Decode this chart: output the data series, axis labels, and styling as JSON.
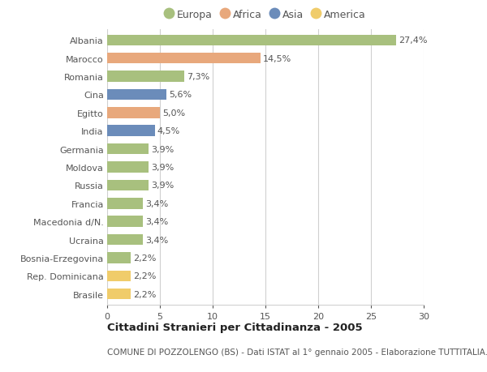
{
  "countries": [
    "Albania",
    "Marocco",
    "Romania",
    "Cina",
    "Egitto",
    "India",
    "Germania",
    "Moldova",
    "Russia",
    "Francia",
    "Macedonia d/N.",
    "Ucraina",
    "Bosnia-Erzegovina",
    "Rep. Dominicana",
    "Brasile"
  ],
  "values": [
    27.4,
    14.5,
    7.3,
    5.6,
    5.0,
    4.5,
    3.9,
    3.9,
    3.9,
    3.4,
    3.4,
    3.4,
    2.2,
    2.2,
    2.2
  ],
  "labels": [
    "27,4%",
    "14,5%",
    "7,3%",
    "5,6%",
    "5,0%",
    "4,5%",
    "3,9%",
    "3,9%",
    "3,9%",
    "3,4%",
    "3,4%",
    "3,4%",
    "2,2%",
    "2,2%",
    "2,2%"
  ],
  "continents": [
    "Europa",
    "Africa",
    "Europa",
    "Asia",
    "Africa",
    "Asia",
    "Europa",
    "Europa",
    "Europa",
    "Europa",
    "Europa",
    "Europa",
    "Europa",
    "America",
    "America"
  ],
  "colors": {
    "Europa": "#a8c07e",
    "Africa": "#e8a87c",
    "Asia": "#6b8cba",
    "America": "#f0cc6a"
  },
  "title": "Cittadini Stranieri per Cittadinanza - 2005",
  "subtitle": "COMUNE DI POZZOLENGO (BS) - Dati ISTAT al 1° gennaio 2005 - Elaborazione TUTTITALIA.IT",
  "xlim": [
    0,
    30
  ],
  "xticks": [
    0,
    5,
    10,
    15,
    20,
    25,
    30
  ],
  "background_color": "#ffffff",
  "grid_color": "#d0d0d0",
  "bar_height": 0.6,
  "label_fontsize": 8,
  "tick_fontsize": 8,
  "title_fontsize": 9.5,
  "subtitle_fontsize": 7.5
}
